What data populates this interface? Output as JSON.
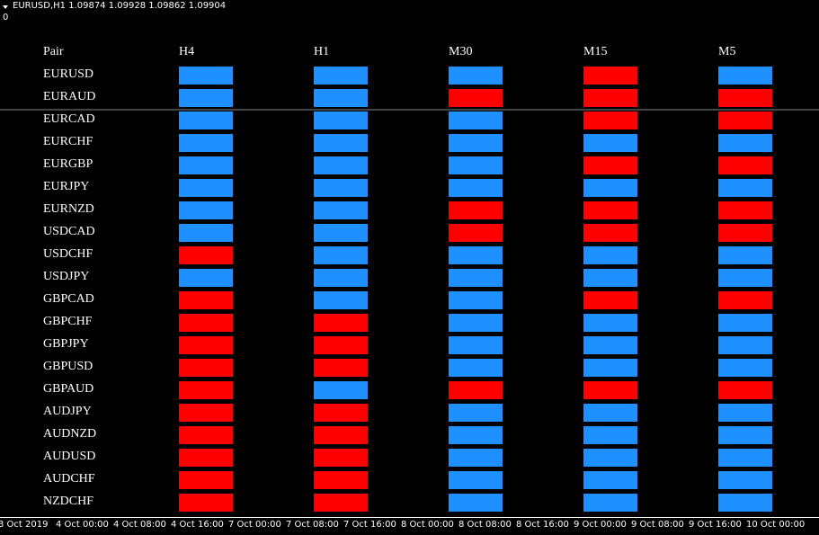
{
  "header": {
    "symbol_line": "EURUSD,H1  1.09874 1.09928 1.09862 1.09904",
    "sub_window": "0"
  },
  "dashboard": {
    "pair_header": "Pair",
    "timeframes": [
      "H4",
      "H1",
      "M30",
      "M15",
      "M5"
    ],
    "colors": {
      "blue": "#1e90ff",
      "red": "#ff0000"
    },
    "pairs": [
      "EURUSD",
      "EURAUD",
      "EURCAD",
      "EURCHF",
      "EURGBP",
      "EURJPY",
      "EURNZD",
      "USDCAD",
      "USDCHF",
      "USDJPY",
      "GBPCAD",
      "GBPCHF",
      "GBPJPY",
      "GBPUSD",
      "GBPAUD",
      "AUDJPY",
      "AUDNZD",
      "AUDUSD",
      "AUDCHF",
      "NZDCHF"
    ],
    "grid": [
      [
        "blue",
        "blue",
        "blue",
        "red",
        "blue"
      ],
      [
        "blue",
        "blue",
        "red",
        "red",
        "red"
      ],
      [
        "blue",
        "blue",
        "blue",
        "red",
        "red"
      ],
      [
        "blue",
        "blue",
        "blue",
        "blue",
        "blue"
      ],
      [
        "blue",
        "blue",
        "blue",
        "red",
        "red"
      ],
      [
        "blue",
        "blue",
        "blue",
        "blue",
        "blue"
      ],
      [
        "blue",
        "blue",
        "red",
        "red",
        "red"
      ],
      [
        "blue",
        "blue",
        "red",
        "red",
        "red"
      ],
      [
        "red",
        "blue",
        "blue",
        "blue",
        "blue"
      ],
      [
        "blue",
        "blue",
        "blue",
        "blue",
        "blue"
      ],
      [
        "red",
        "blue",
        "blue",
        "red",
        "red"
      ],
      [
        "red",
        "red",
        "blue",
        "blue",
        "blue"
      ],
      [
        "red",
        "red",
        "blue",
        "blue",
        "blue"
      ],
      [
        "red",
        "red",
        "blue",
        "blue",
        "blue"
      ],
      [
        "red",
        "blue",
        "red",
        "red",
        "red"
      ],
      [
        "red",
        "red",
        "blue",
        "blue",
        "blue"
      ],
      [
        "red",
        "red",
        "blue",
        "blue",
        "blue"
      ],
      [
        "red",
        "red",
        "blue",
        "blue",
        "blue"
      ],
      [
        "red",
        "red",
        "blue",
        "blue",
        "blue"
      ],
      [
        "red",
        "red",
        "blue",
        "blue",
        "blue"
      ]
    ]
  },
  "time_axis": [
    "3 Oct 2019",
    "4 Oct 00:00",
    "4 Oct 08:00",
    "4 Oct 16:00",
    "7 Oct 00:00",
    "7 Oct 08:00",
    "7 Oct 16:00",
    "8 Oct 00:00",
    "8 Oct 08:00",
    "8 Oct 16:00",
    "9 Oct 00:00",
    "9 Oct 08:00",
    "9 Oct 16:00",
    "10 Oct 00:00"
  ]
}
